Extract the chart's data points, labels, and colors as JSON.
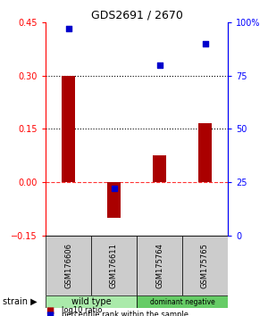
{
  "title": "GDS2691 / 2670",
  "samples": [
    "GSM176606",
    "GSM176611",
    "GSM175764",
    "GSM175765"
  ],
  "log10_ratio": [
    0.3,
    -0.1,
    0.075,
    0.165
  ],
  "percentile_rank": [
    97,
    22,
    80,
    90
  ],
  "groups": [
    {
      "label": "wild type",
      "samples": [
        0,
        1
      ],
      "color": "#aaeaaa"
    },
    {
      "label": "dominant negative",
      "samples": [
        2,
        3
      ],
      "color": "#66cc66"
    }
  ],
  "bar_color": "#AA0000",
  "dot_color": "#0000CC",
  "ylim_left": [
    -0.15,
    0.45
  ],
  "ylim_right": [
    0,
    100
  ],
  "yticks_left": [
    -0.15,
    0,
    0.15,
    0.3,
    0.45
  ],
  "yticks_right": [
    0,
    25,
    50,
    75,
    100
  ],
  "hlines": [
    0.15,
    0.3
  ],
  "background_color": "#ffffff",
  "label_area_color": "#cccccc",
  "bar_width": 0.3
}
